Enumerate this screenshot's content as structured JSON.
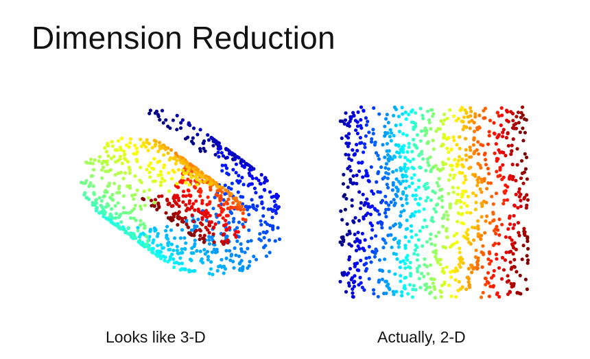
{
  "slide": {
    "title": "Dimension Reduction"
  },
  "figures": {
    "swiss_roll": {
      "caption": "Looks like 3-D",
      "colormap": "jet"
    },
    "unrolled": {
      "caption": "Actually, 2-D",
      "colormap": "jet"
    }
  },
  "colors": {
    "background": "#ffffff",
    "text": "#111111",
    "jet_stops": [
      "#00007f",
      "#0000ff",
      "#007fff",
      "#00ffff",
      "#7fff7f",
      "#ffff00",
      "#ff7f00",
      "#ff0000",
      "#7f0000"
    ]
  }
}
